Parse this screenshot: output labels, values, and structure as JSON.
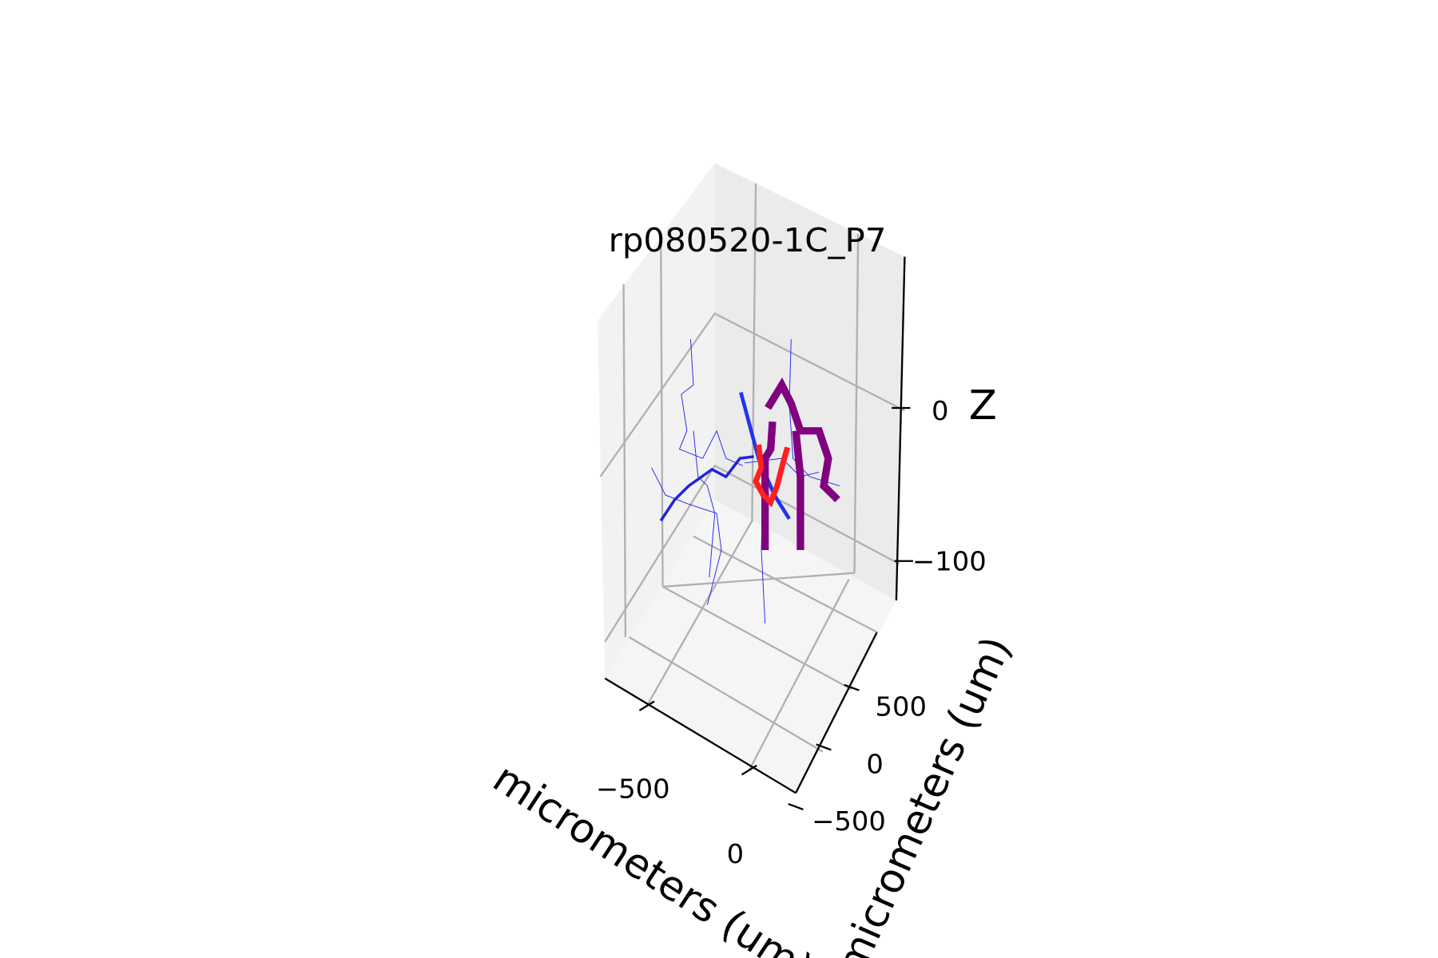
{
  "chart_data": {
    "type": "scatter3d",
    "title": "rp080520-1C_P7",
    "x_label": "micrometers (um)",
    "y_label": "micrometers (um)",
    "z_label": "Z",
    "xticks": [
      {
        "value": -500,
        "label": "−500"
      },
      0
    ],
    "yticks": [
      500,
      0,
      {
        "value": -500,
        "label": "−500"
      }
    ],
    "zticks": [
      0,
      {
        "value": -100,
        "label": "−100"
      }
    ],
    "grid": true
  }
}
